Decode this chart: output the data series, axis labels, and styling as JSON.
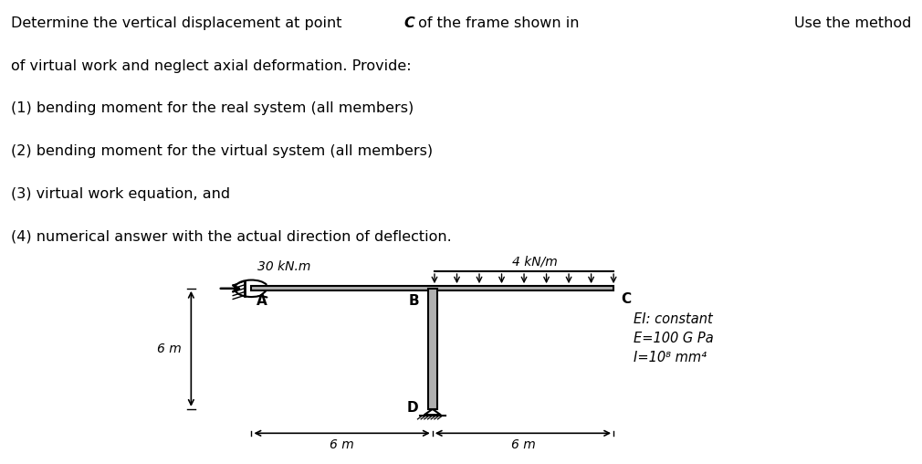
{
  "background_color": "#ffffff",
  "text_line1_pre": "Determine the vertical displacement at point ",
  "text_line1_C": "C",
  "text_line1_post": " of the frame shown in",
  "text_line2": "of virtual work and neglect axial deformation. Provide:",
  "text_line3": "(1) bending moment for the real system (all members)",
  "text_line4": "(2) bending moment for the virtual system (all members)",
  "text_line5": "(3) virtual work equation, and",
  "text_line6": "(4) numerical answer with the actual direction of deflection.",
  "top_right_text": "Use the method",
  "load_label": "4 kN/m",
  "moment_label": "30 kN.m",
  "dim_left": "6 m",
  "dim_right": "6 m",
  "dim_height": "6 m",
  "EI_line1": "EI: constant",
  "EI_line2": "E=100 G Pa",
  "EI_line3": "I=10⁸ mm⁴",
  "label_A": "A",
  "label_B": "B",
  "label_C": "C",
  "label_D": "D",
  "beam_color": "#b0b0b0",
  "col_color": "#b0b0b0",
  "lw_struct": 1.5
}
